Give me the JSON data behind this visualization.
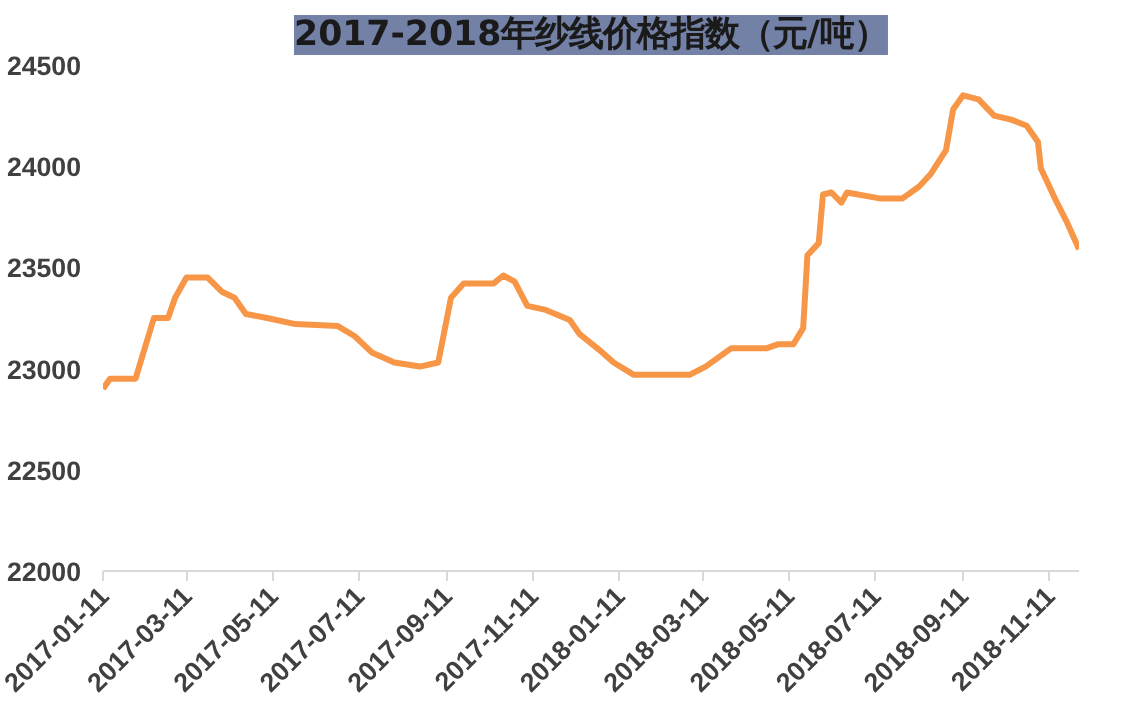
{
  "chart_data": {
    "type": "line",
    "title": "2017-2018年纱线价格指数（元/吨）",
    "x": [
      "2017-01-11",
      "2017-01-16",
      "2017-02-03",
      "2017-02-16",
      "2017-02-26",
      "2017-03-03",
      "2017-03-11",
      "2017-03-26",
      "2017-04-05",
      "2017-04-14",
      "2017-04-22",
      "2017-05-07",
      "2017-05-27",
      "2017-06-26",
      "2017-07-08",
      "2017-07-20",
      "2017-08-05",
      "2017-08-23",
      "2017-09-05",
      "2017-09-14",
      "2017-09-23",
      "2017-10-14",
      "2017-10-21",
      "2017-10-29",
      "2017-11-07",
      "2017-11-20",
      "2017-12-07",
      "2017-12-14",
      "2017-12-30",
      "2018-01-07",
      "2018-01-21",
      "2018-03-02",
      "2018-03-13",
      "2018-03-31",
      "2018-04-25",
      "2018-05-03",
      "2018-05-14",
      "2018-05-21",
      "2018-05-24",
      "2018-06-01",
      "2018-06-04",
      "2018-06-10",
      "2018-06-17",
      "2018-06-21",
      "2018-07-15",
      "2018-07-30",
      "2018-08-11",
      "2018-08-19",
      "2018-08-30",
      "2018-09-04",
      "2018-09-11",
      "2018-09-22",
      "2018-10-03",
      "2018-10-15",
      "2018-10-26",
      "2018-11-03",
      "2018-11-05",
      "2018-11-15",
      "2018-11-23",
      "2018-12-02"
    ],
    "series": [
      {
        "color": "#f79646",
        "values": [
          22900,
          22950,
          22950,
          23250,
          23250,
          23350,
          23450,
          23450,
          23380,
          23350,
          23270,
          23250,
          23220,
          23210,
          23160,
          23080,
          23030,
          23010,
          23030,
          23350,
          23420,
          23420,
          23460,
          23430,
          23310,
          23290,
          23240,
          23170,
          23080,
          23030,
          22970,
          22970,
          23010,
          23100,
          23100,
          23120,
          23120,
          23200,
          23560,
          23620,
          23860,
          23870,
          23820,
          23870,
          23840,
          23840,
          23900,
          23960,
          24080,
          24280,
          24350,
          24330,
          24250,
          24230,
          24200,
          24120,
          23990,
          23840,
          23730,
          23590
        ]
      }
    ],
    "xlim": [
      "2017-01-11",
      "2018-12-02"
    ],
    "xticks": [
      {
        "value": "2017-01-11",
        "label": "2017-01-11"
      },
      {
        "value": "2017-03-11",
        "label": "2017-03-11"
      },
      {
        "value": "2017-05-11",
        "label": "2017-05-11"
      },
      {
        "value": "2017-07-11",
        "label": "2017-07-11"
      },
      {
        "value": "2017-09-11",
        "label": "2017-09-11"
      },
      {
        "value": "2017-11-11",
        "label": "2017-11-11"
      },
      {
        "value": "2018-01-11",
        "label": "2018-01-11"
      },
      {
        "value": "2018-03-11",
        "label": "2018-03-11"
      },
      {
        "value": "2018-05-11",
        "label": "2018-05-11"
      },
      {
        "value": "2018-07-11",
        "label": "2018-07-11"
      },
      {
        "value": "2018-09-11",
        "label": "2018-09-11"
      },
      {
        "value": "2018-11-11",
        "label": "2018-11-11"
      }
    ],
    "ylim": [
      22000,
      24500
    ],
    "yticks": [
      22000,
      22500,
      23000,
      23500,
      24000,
      24500
    ],
    "grid": false,
    "marker": "none",
    "line_style": "solid"
  }
}
